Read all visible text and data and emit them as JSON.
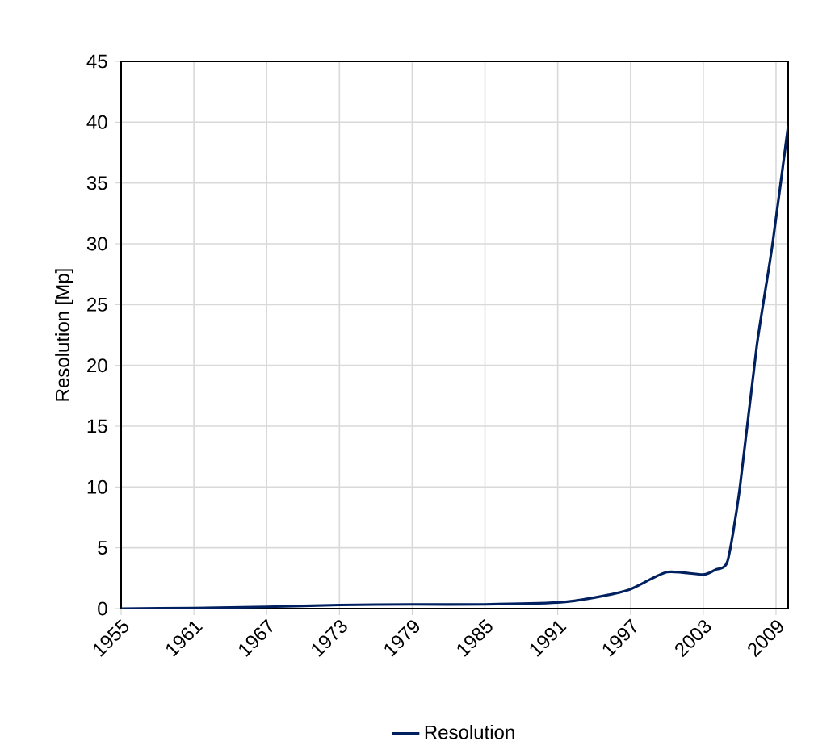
{
  "chart_data": {
    "type": "line",
    "ylabel": "Resolution [Mp]",
    "x": [
      1955,
      1961,
      1967,
      1973,
      1979,
      1985,
      1991,
      1994,
      1997,
      2000,
      2003,
      2004,
      2005,
      2006,
      2007.4,
      2008.7,
      2010
    ],
    "series": [
      {
        "name": "Resolution",
        "color": "#002060",
        "values": [
          0,
          0.05,
          0.15,
          0.3,
          0.35,
          0.35,
          0.5,
          0.9,
          1.6,
          3.0,
          2.8,
          3.2,
          3.9,
          9.8,
          21.5,
          29.9,
          39.7
        ]
      }
    ],
    "xlim": [
      1955,
      2010
    ],
    "xticks": [
      1955,
      1961,
      1967,
      1973,
      1979,
      1985,
      1991,
      1997,
      2003,
      2009
    ],
    "ylim": [
      0,
      45
    ],
    "yticks": [
      0,
      5,
      10,
      15,
      20,
      25,
      30,
      35,
      40,
      45
    ],
    "grid": true,
    "legend": "bottom",
    "marker": "none",
    "line_style": "solid"
  }
}
